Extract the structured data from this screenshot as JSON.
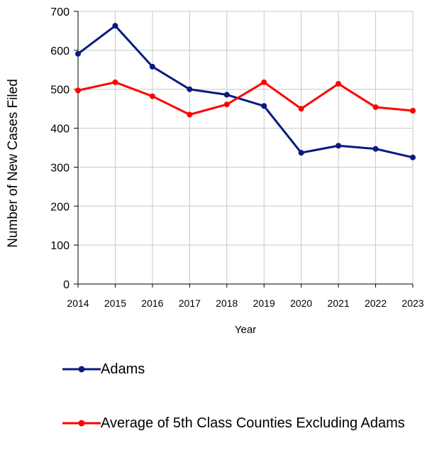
{
  "chart_data": {
    "type": "line",
    "x": [
      "2014",
      "2015",
      "2016",
      "2017",
      "2018",
      "2019",
      "2020",
      "2021",
      "2022",
      "2023"
    ],
    "series": [
      {
        "name": "Adams",
        "values": [
          591,
          663,
          558,
          500,
          486,
          457,
          337,
          355,
          347,
          325
        ],
        "color": "#0a1a80"
      },
      {
        "name": "Average of 5th Class Counties Excluding Adams",
        "values": [
          497,
          518,
          482,
          435,
          461,
          518,
          450,
          514,
          454,
          445
        ],
        "color": "#ff0000"
      }
    ],
    "xlabel": "Year",
    "ylabel": "Number of New Cases Filed",
    "ylim": [
      0,
      700
    ],
    "yticks": [
      "0",
      "100",
      "200",
      "300",
      "400",
      "500",
      "600",
      "700"
    ],
    "grid": true,
    "legend_position": "bottom"
  }
}
